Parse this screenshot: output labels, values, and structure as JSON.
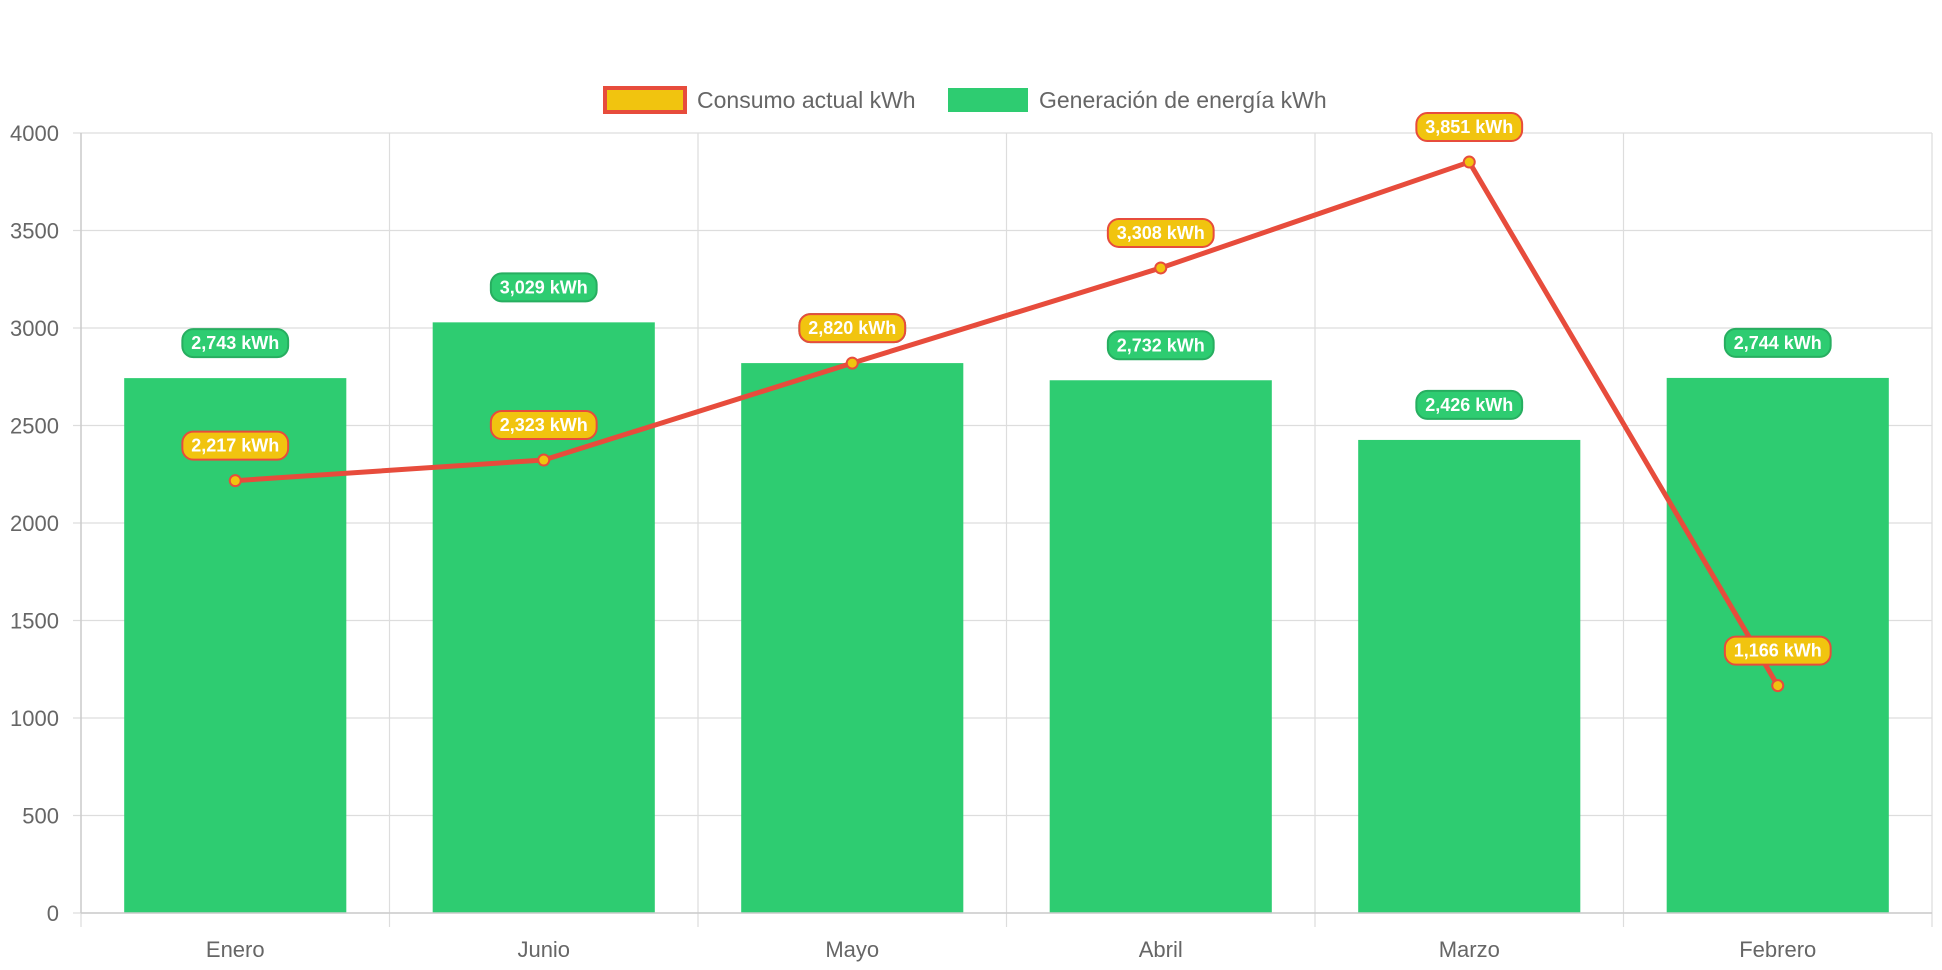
{
  "chart_data": {
    "type": "bar",
    "categories": [
      "Enero",
      "Junio",
      "Mayo",
      "Abril",
      "Marzo",
      "Febrero"
    ],
    "series": [
      {
        "name": "Consumo actual kWh",
        "type": "line",
        "values": [
          2217,
          2323,
          2820,
          3308,
          3851,
          1166
        ],
        "labels": [
          "2,217 kWh",
          "2,323 kWh",
          "2,820 kWh",
          "3,308 kWh",
          "3,851 kWh",
          "1,166 kWh"
        ],
        "color": "#e74c3c",
        "fill": "#f1c40f"
      },
      {
        "name": "Generación de energía kWh",
        "type": "bar",
        "values": [
          2743,
          3029,
          2820,
          2732,
          2426,
          2744
        ],
        "labels": [
          "2,743 kWh",
          "3,029 kWh",
          "2,820 kWh",
          "2,732 kWh",
          "2,426 kWh",
          "2,744 kWh"
        ],
        "color": "#2ecc71"
      }
    ],
    "ylim": [
      0,
      4000
    ],
    "yticks": [
      "0",
      "500",
      "1000",
      "1500",
      "2000",
      "2500",
      "3000",
      "3500",
      "4000"
    ],
    "grid": true,
    "legend": "top-center",
    "title": "",
    "xlabel": "",
    "ylabel": ""
  },
  "colors": {
    "grid": "#dddddd",
    "axis": "#cccccc",
    "tick_text": "#666666",
    "label_text": "#ffffff"
  }
}
